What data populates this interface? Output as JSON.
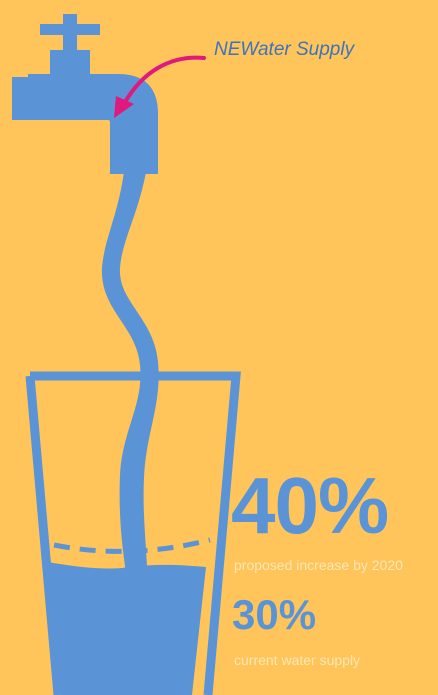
{
  "callout": {
    "label": "NEWater Supply"
  },
  "stats": {
    "primary": {
      "value": "40%",
      "caption": "proposed increase by 2020"
    },
    "secondary": {
      "value": "30%",
      "caption": "current water supply"
    }
  },
  "colors": {
    "background": "#FFC55A",
    "water": "#5A94D6",
    "arrow": "#E0197D",
    "caption": "#FFE6B4",
    "callout_text": "#3E73BC"
  },
  "icons": [
    "faucet-icon",
    "water-stream",
    "glass-icon",
    "arrow-icon"
  ]
}
